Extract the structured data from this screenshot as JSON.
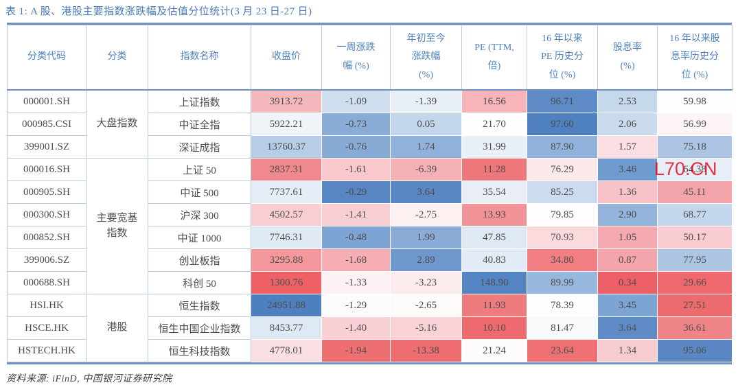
{
  "title": "表 1:  A 股、港股主要指数涨跌幅及估值分位统计(3 月 23 日-27 日)",
  "source_note": "资料来源: iFinD, 中国银河证券研究院",
  "watermark": {
    "text": "L70.CN",
    "color": "#e60012"
  },
  "colors": {
    "title_text": "#4a7ab8",
    "header_text": "#4f81bd",
    "cell_text": "#4d4d4d",
    "thick_border": "#7090c0",
    "grid_border": "#b9cce4",
    "heat_blue_strong": "#4f81c0",
    "heat_red_strong": "#ee6167"
  },
  "table": {
    "columns": [
      "分类代码",
      "分类",
      "指数名称",
      "收盘价",
      "一周涨跌\n幅 (%)",
      "年初至今\n涨跌幅\n(%)",
      "PE (TTM,\n倍)",
      "16 年以来\nPE 历史分\n位 (%)",
      "股息率\n(%)",
      "16 年以来股\n息率历史分\n位 (%)"
    ],
    "groups": [
      {
        "label": "大盘指数",
        "span": 3
      },
      {
        "label": "主要宽基指数",
        "span": 6
      },
      {
        "label": "港股",
        "span": 3
      }
    ],
    "rows": [
      {
        "code": "000001.SH",
        "name": "上证指数",
        "values": [
          "3913.72",
          "-1.09",
          "-1.39",
          "16.56",
          "96.71",
          "2.53",
          "59.98"
        ],
        "bg": [
          "#f5b8bd",
          "#cedeee",
          "#e8eff7",
          "#f7b5ba",
          "#5e8bc6",
          "#c6d8ec",
          "#fcfdfe"
        ]
      },
      {
        "code": "000985.CSI",
        "name": "中证全指",
        "values": [
          "5922.21",
          "-0.73",
          "0.05",
          "21.70",
          "97.60",
          "2.06",
          "56.99"
        ],
        "bg": [
          "#eff4f9",
          "#8aadd7",
          "#c3d6eb",
          "#fefefe",
          "#4f81c0",
          "#cbdbee",
          "#fdf4f5"
        ]
      },
      {
        "code": "399001.SZ",
        "name": "深证成指",
        "values": [
          "13760.37",
          "-0.76",
          "1.74",
          "31.99",
          "87.90",
          "1.57",
          "75.18"
        ],
        "bg": [
          "#b7cce6",
          "#88abd6",
          "#90b1da",
          "#eaf0f8",
          "#92b2db",
          "#fadee1",
          "#abc4e3"
        ]
      },
      {
        "code": "000016.SH",
        "name": "上证 50",
        "values": [
          "2837.31",
          "-1.61",
          "-6.39",
          "11.28",
          "76.29",
          "3.46",
          "64.38"
        ],
        "bg": [
          "#f0888d",
          "#f8c8cd",
          "#f5b0b5",
          "#ef767b",
          "#fce9eb",
          "#6f9cd0",
          "#e8eef7"
        ]
      },
      {
        "code": "000905.SH",
        "name": "中证 500",
        "values": [
          "7737.61",
          "-0.29",
          "3.64",
          "35.54",
          "85.25",
          "1.36",
          "45.11"
        ],
        "bg": [
          "#e5edf6",
          "#5886c4",
          "#5a88c5",
          "#e9eef6",
          "#ccdbed",
          "#f7c3c9",
          "#f2a4aa"
        ]
      },
      {
        "code": "000300.SH",
        "name": "沪深 300",
        "values": [
          "4502.57",
          "-1.41",
          "-2.75",
          "13.93",
          "79.85",
          "2.90",
          "68.77"
        ],
        "bg": [
          "#f8ced2",
          "#f9ced3",
          "#fdf0f1",
          "#f29397",
          "#fefcfc",
          "#94b4db",
          "#c5d7ec"
        ]
      },
      {
        "code": "000852.SH",
        "name": "中证 1000",
        "values": [
          "7746.31",
          "-0.48",
          "1.99",
          "47.85",
          "70.93",
          "1.05",
          "50.17"
        ],
        "bg": [
          "#e0eaf5",
          "#7da4d3",
          "#89abd6",
          "#dfe9f4",
          "#fbdadd",
          "#f4aab0",
          "#f8ccd1"
        ]
      },
      {
        "code": "399006.SZ",
        "name": "创业板指",
        "values": [
          "3295.88",
          "-1.68",
          "2.89",
          "40.83",
          "34.80",
          "0.87",
          "77.95"
        ],
        "bg": [
          "#f4989d",
          "#f5aeb3",
          "#6e98cd",
          "#e3ebf6",
          "#f07e82",
          "#f4a5ab",
          "#acc5e3"
        ]
      },
      {
        "code": "000688.SH",
        "name": "科创 50",
        "values": [
          "1300.76",
          "-1.33",
          "-3.23",
          "148.90",
          "89.99",
          "0.34",
          "29.66"
        ],
        "bg": [
          "#ee6167",
          "#fdf2f3",
          "#fcebed",
          "#5484c2",
          "#98b7dd",
          "#ed6067",
          "#ee686d"
        ]
      },
      {
        "code": "HSI.HK",
        "name": "恒生指数",
        "values": [
          "24951.88",
          "-1.29",
          "-2.65",
          "11.93",
          "78.39",
          "3.45",
          "27.51"
        ],
        "bg": [
          "#4e80c0",
          "#fdfafb",
          "#fdfafa",
          "#ef7b7f",
          "#fdfdfe",
          "#7da5d4",
          "#ed6b6e"
        ]
      },
      {
        "code": "HSCE.HK",
        "name": "恒生中国企业指数",
        "values": [
          "8453.77",
          "-1.40",
          "-5.16",
          "10.10",
          "81.47",
          "3.64",
          "36.61"
        ],
        "bg": [
          "#dfe9f4",
          "#f9d0d5",
          "#f8d2d6",
          "#ee6a6e",
          "#f8fafc",
          "#5f8cc6",
          "#f08589"
        ]
      },
      {
        "code": "HSTECH.HK",
        "name": "恒生科技指数",
        "values": [
          "4778.01",
          "-1.94",
          "-13.38",
          "21.24",
          "23.64",
          "1.34",
          "95.06"
        ],
        "bg": [
          "#fadfe2",
          "#ee6f72",
          "#ee6d70",
          "#fdfbfc",
          "#ee7073",
          "#f7ccd1",
          "#5b88c4"
        ]
      }
    ]
  }
}
